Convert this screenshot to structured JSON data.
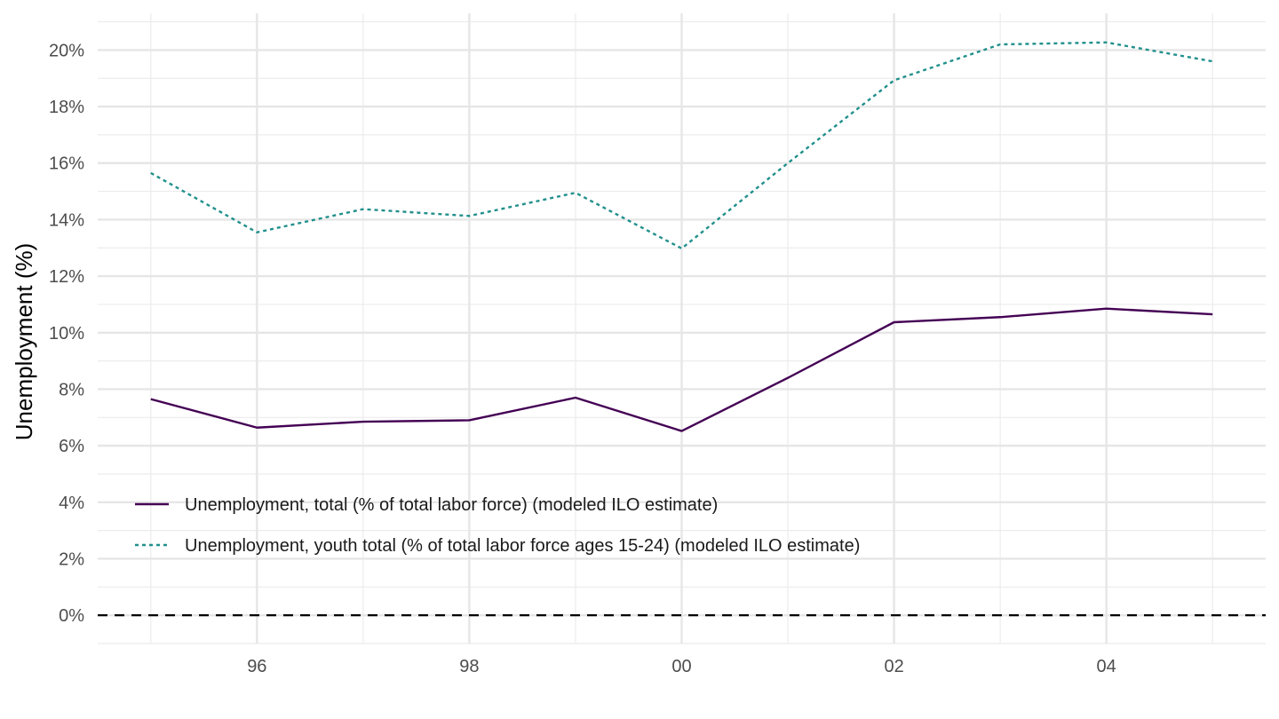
{
  "chart_data": {
    "type": "line",
    "xlabel": "",
    "ylabel": "Unemployment (%)",
    "x": [
      1995,
      1996,
      1997,
      1998,
      1999,
      2000,
      2001,
      2002,
      2003,
      2004,
      2005
    ],
    "x_ticks": [
      {
        "value": 1996,
        "label": "96"
      },
      {
        "value": 1998,
        "label": "98"
      },
      {
        "value": 2000,
        "label": "00"
      },
      {
        "value": 2002,
        "label": "02"
      },
      {
        "value": 2004,
        "label": "04"
      }
    ],
    "y_ticks": [
      {
        "value": 0,
        "label": "0%"
      },
      {
        "value": 2,
        "label": "2%"
      },
      {
        "value": 4,
        "label": "4%"
      },
      {
        "value": 6,
        "label": "6%"
      },
      {
        "value": 8,
        "label": "8%"
      },
      {
        "value": 10,
        "label": "10%"
      },
      {
        "value": 12,
        "label": "12%"
      },
      {
        "value": 14,
        "label": "14%"
      },
      {
        "value": 16,
        "label": "16%"
      },
      {
        "value": 18,
        "label": "18%"
      },
      {
        "value": 20,
        "label": "20%"
      }
    ],
    "xlim": [
      1994.5,
      2005.5
    ],
    "ylim": [
      -1,
      21.3
    ],
    "grid": true,
    "reference_line": {
      "y": 0,
      "style": "dashed",
      "color": "#000000"
    },
    "legend_position": "bottom-left",
    "series": [
      {
        "name": "Unemployment, total (% of total labor force) (modeled ILO estimate)",
        "color": "#440154",
        "dash": "solid",
        "values": [
          7.65,
          6.64,
          6.85,
          6.9,
          7.7,
          6.52,
          8.4,
          10.37,
          10.55,
          10.85,
          10.65
        ]
      },
      {
        "name": "Unemployment, youth total (% of total labor force ages 15-24) (modeled ILO estimate)",
        "color": "#21908C",
        "dash": "dotted",
        "values": [
          15.65,
          13.55,
          14.37,
          14.13,
          14.95,
          12.98,
          16.0,
          18.93,
          20.2,
          20.27,
          19.6
        ]
      }
    ]
  }
}
